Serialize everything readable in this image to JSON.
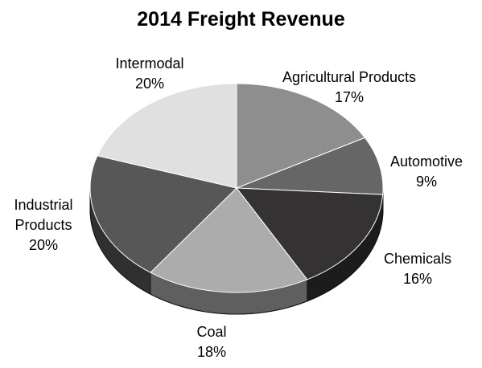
{
  "chart_data": {
    "type": "pie",
    "title": "2014 Freight Revenue",
    "slices": [
      {
        "label": [
          "Agricultural Products"
        ],
        "value": 17,
        "value_label": "17%",
        "color": "#8e8e8e"
      },
      {
        "label": [
          "Automotive"
        ],
        "value": 9,
        "value_label": "9%",
        "color": "#666666"
      },
      {
        "label": [
          "Chemicals"
        ],
        "value": 16,
        "value_label": "16%",
        "color": "#353233"
      },
      {
        "label": [
          "Coal"
        ],
        "value": 18,
        "value_label": "18%",
        "color": "#acacac"
      },
      {
        "label": [
          "Industrial",
          "Products"
        ],
        "value": 20,
        "value_label": "20%",
        "color": "#575757"
      },
      {
        "label": [
          "Intermodal"
        ],
        "value": 20,
        "value_label": "20%",
        "color": "#e0e0e0"
      }
    ],
    "start": "12 o'clock",
    "direction": "clockwise",
    "style": "3d"
  }
}
